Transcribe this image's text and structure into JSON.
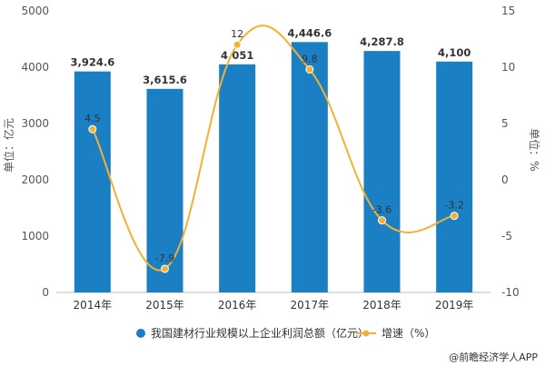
{
  "chart_data": {
    "type": "bar",
    "categories": [
      "2014年",
      "2015年",
      "2016年",
      "2017年",
      "2018年",
      "2019年"
    ],
    "series": [
      {
        "name": "我国建材行业规模以上企业利润总额（亿元）",
        "type": "bar",
        "axis": "left",
        "values": [
          3924.6,
          3615.6,
          4051,
          4446.6,
          4287.8,
          4100
        ],
        "labels": [
          "3,924.6",
          "3,615.6",
          "4,051",
          "4,446.6",
          "4,287.8",
          "4,100"
        ],
        "color": "#1b7fc4"
      },
      {
        "name": "增速（%）",
        "type": "line",
        "axis": "right",
        "values": [
          4.5,
          -7.9,
          12,
          9.8,
          -3.6,
          -3.2
        ],
        "labels": [
          "4.5",
          "-7.9",
          "12",
          "9.8",
          "-3.6",
          "-3.2"
        ],
        "color": "#f2b134"
      }
    ],
    "y_left": {
      "label": "单位：亿元",
      "ylim": [
        0,
        5000
      ],
      "ticks": [
        "0",
        "1000",
        "2000",
        "3000",
        "4000",
        "5000"
      ]
    },
    "y_right": {
      "label": "单位：%",
      "ylim": [
        -10,
        15
      ],
      "ticks": [
        "-10",
        "-5",
        "0",
        "5",
        "10",
        "15"
      ]
    },
    "grid": false,
    "legend_position": "bottom"
  },
  "watermark": "@前瞻经济学人APP"
}
